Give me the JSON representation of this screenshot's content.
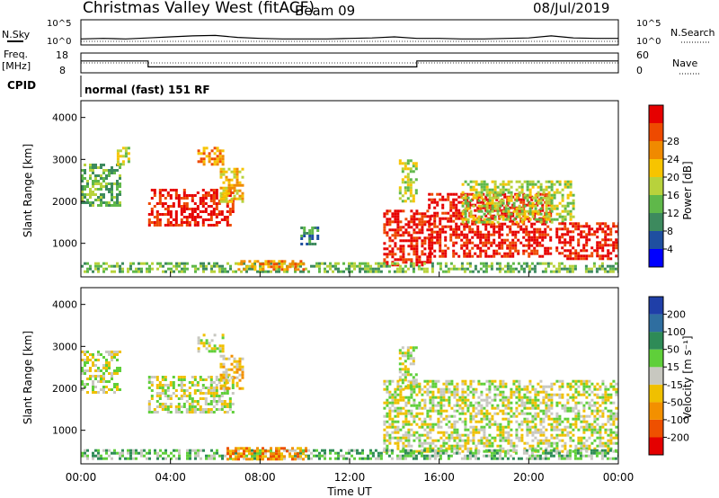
{
  "header": {
    "station": "Christmas Valley West (fitACF)",
    "beam": "Beam 09",
    "date": "08/Jul/2019"
  },
  "noise_panel": {
    "left_label": "N.Sky",
    "right_label": "N.Search",
    "tick_top": "10^5",
    "tick_bottom": "10^0",
    "right_tick_top": "10^5",
    "right_tick_bottom": "10^0"
  },
  "freq_panel": {
    "left_label_1": "Freq.",
    "left_label_2": "[MHz]",
    "right_label": "Nave",
    "left_ticks": [
      "18",
      "8"
    ],
    "right_ticks": [
      "60",
      "0"
    ]
  },
  "cpid": {
    "label": "CPID",
    "value": "normal (fast) 151 RF"
  },
  "x_axis": {
    "label": "Time UT",
    "ticks": [
      "00:00",
      "04:00",
      "08:00",
      "12:00",
      "16:00",
      "20:00",
      "00:00"
    ]
  },
  "power_panel": {
    "ylabel": "Slant Range [km]",
    "yticks": [
      "1000",
      "2000",
      "3000",
      "4000"
    ],
    "colorbar_label": "Power [dB]",
    "colorbar_ticks": [
      "4",
      "8",
      "12",
      "16",
      "20",
      "24",
      "28"
    ],
    "colors": [
      "#0000ff",
      "#1f4fa0",
      "#3d8a5e",
      "#5fb84a",
      "#b8d23c",
      "#f7c400",
      "#f08a00",
      "#ee4a00",
      "#e60000"
    ]
  },
  "velocity_panel": {
    "ylabel": "Slant Range [km]",
    "yticks": [
      "1000",
      "2000",
      "3000",
      "4000"
    ],
    "colorbar_label": "Velocity [m s⁻¹]",
    "colorbar_ticks": [
      "200",
      "100",
      "50",
      "15",
      "-15",
      "-50",
      "-100",
      "-200"
    ],
    "colors": [
      "#1f3fa8",
      "#2f6ea0",
      "#2e8b57",
      "#5fcf3a",
      "#c8c8c0",
      "#f0c000",
      "#f39000",
      "#ee5000",
      "#e40000"
    ]
  },
  "chart_data": [
    {
      "type": "line",
      "name": "noise",
      "x_range_hours": [
        0,
        24
      ],
      "ylim_log10": [
        0,
        5
      ],
      "series": [
        {
          "name": "N.Sky",
          "x": [
            0,
            1,
            2,
            3,
            4,
            5,
            6,
            7,
            8,
            9,
            10,
            11,
            12,
            13,
            14,
            15,
            16,
            17,
            18,
            19,
            20,
            21,
            22,
            23,
            24
          ],
          "values": [
            1.2,
            1.3,
            1.2,
            1.4,
            1.6,
            1.8,
            1.9,
            1.5,
            1.3,
            1.2,
            1.2,
            1.2,
            1.3,
            1.4,
            1.6,
            1.3,
            1.3,
            1.2,
            1.2,
            1.3,
            1.4,
            1.8,
            1.4,
            1.3,
            1.3
          ]
        }
      ]
    },
    {
      "type": "line",
      "name": "frequency",
      "xlabel": "Time UT",
      "ylim": [
        8,
        18
      ],
      "series": [
        {
          "name": "Freq.",
          "x": [
            0,
            3,
            3,
            15,
            15,
            24
          ],
          "values": [
            14,
            14,
            11,
            11,
            14,
            14
          ]
        }
      ]
    },
    {
      "type": "heatmap",
      "name": "power",
      "xlabel": "Time UT",
      "ylabel": "Slant Range [km]",
      "x_range_hours": [
        0,
        24
      ],
      "ylim": [
        200,
        4400
      ],
      "colorbar": {
        "label": "Power [dB]",
        "ticks": [
          4,
          8,
          12,
          16,
          20,
          24,
          28
        ]
      },
      "regions": [
        {
          "t0": 0.0,
          "t1": 1.8,
          "r0": 1900,
          "r1": 2900,
          "level": 3
        },
        {
          "t0": 1.6,
          "t1": 2.2,
          "r0": 2900,
          "r1": 3300,
          "level": 4
        },
        {
          "t0": 3.0,
          "t1": 6.8,
          "r0": 1400,
          "r1": 2300,
          "level": 8
        },
        {
          "t0": 5.2,
          "t1": 6.4,
          "r0": 2900,
          "r1": 3300,
          "level": 6
        },
        {
          "t0": 6.2,
          "t1": 7.2,
          "r0": 2000,
          "r1": 2800,
          "level": 5
        },
        {
          "t0": 0.0,
          "t1": 13.0,
          "r0": 300,
          "r1": 550,
          "level": 3
        },
        {
          "t0": 7.0,
          "t1": 10.0,
          "r0": 350,
          "r1": 600,
          "level": 6
        },
        {
          "t0": 9.8,
          "t1": 10.6,
          "r0": 1000,
          "r1": 1400,
          "level": 2
        },
        {
          "t0": 13.5,
          "t1": 15.6,
          "r0": 500,
          "r1": 1800,
          "level": 8
        },
        {
          "t0": 14.2,
          "t1": 15.0,
          "r0": 2000,
          "r1": 3000,
          "level": 4
        },
        {
          "t0": 15.5,
          "t1": 21.0,
          "r0": 700,
          "r1": 2200,
          "level": 8
        },
        {
          "t0": 17.0,
          "t1": 22.0,
          "r0": 1500,
          "r1": 2500,
          "level": 4
        },
        {
          "t0": 21.2,
          "t1": 24.0,
          "r0": 600,
          "r1": 1500,
          "level": 8
        },
        {
          "t0": 13.0,
          "t1": 24.0,
          "r0": 300,
          "r1": 550,
          "level": 3
        }
      ]
    },
    {
      "type": "heatmap",
      "name": "velocity",
      "xlabel": "Time UT",
      "ylabel": "Slant Range [km]",
      "x_range_hours": [
        0,
        24
      ],
      "ylim": [
        200,
        4400
      ],
      "colorbar": {
        "label": "Velocity [m s⁻¹]",
        "ticks": [
          200,
          100,
          50,
          15,
          -15,
          -50,
          -100,
          -200
        ]
      },
      "regions": [
        {
          "t0": 0.0,
          "t1": 1.8,
          "r0": 1900,
          "r1": 2900,
          "level": 4
        },
        {
          "t0": 3.0,
          "t1": 6.8,
          "r0": 1400,
          "r1": 2300,
          "level": 4
        },
        {
          "t0": 6.2,
          "t1": 7.2,
          "r0": 2000,
          "r1": 2800,
          "level": 5
        },
        {
          "t0": 5.2,
          "t1": 6.4,
          "r0": 2900,
          "r1": 3300,
          "level": 4
        },
        {
          "t0": 0.0,
          "t1": 13.0,
          "r0": 300,
          "r1": 550,
          "level": 3
        },
        {
          "t0": 6.5,
          "t1": 10.0,
          "r0": 330,
          "r1": 600,
          "level": 6
        },
        {
          "t0": 13.5,
          "t1": 24.0,
          "r0": 500,
          "r1": 2200,
          "level": 4
        },
        {
          "t0": 14.2,
          "t1": 15.0,
          "r0": 2000,
          "r1": 3000,
          "level": 4
        },
        {
          "t0": 13.0,
          "t1": 24.0,
          "r0": 300,
          "r1": 550,
          "level": 3
        }
      ]
    }
  ]
}
